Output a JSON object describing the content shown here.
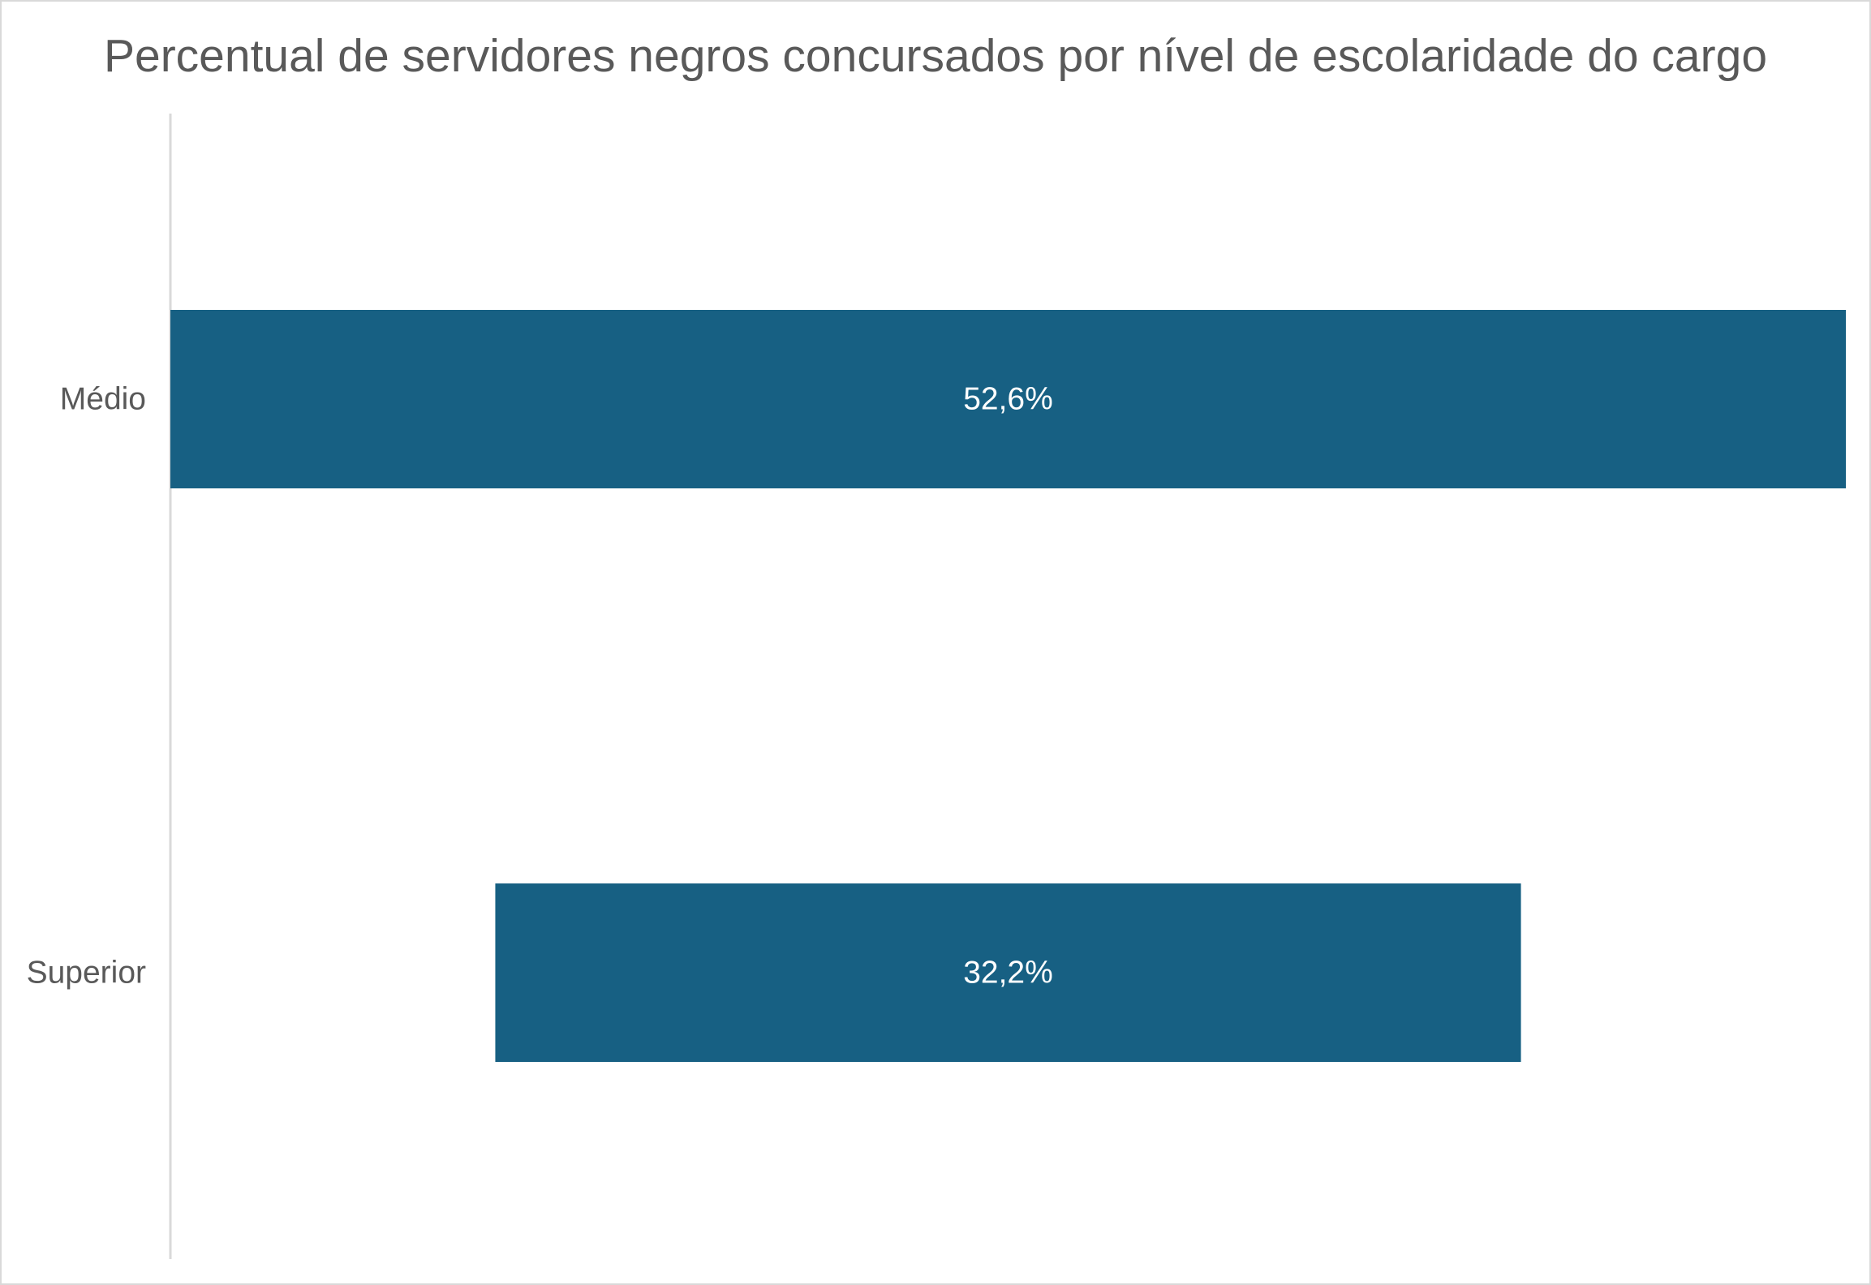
{
  "chart_data": {
    "type": "bar",
    "orientation": "horizontal",
    "title": "Percentual de servidores negros concursados por nível de escolaridade do cargo",
    "categories": [
      "Médio",
      "Superior"
    ],
    "values": [
      52.6,
      32.2
    ],
    "data_labels": [
      "52,6%",
      "32,2%"
    ],
    "xlabel": "",
    "ylabel": "",
    "xlim": [
      0,
      52.6
    ],
    "grid": false,
    "legend": "none",
    "bar_alignment": "center",
    "colors": {
      "bar": "#176083",
      "axis": "#d9d9d9",
      "text": "#595959",
      "data_label": "#ffffff"
    }
  }
}
